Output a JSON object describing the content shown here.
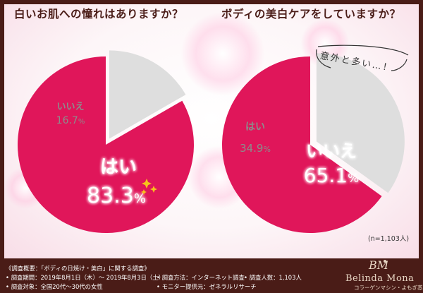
{
  "chart_data": [
    {
      "type": "pie",
      "title": "白いお肌への憧れはありますか？",
      "slices": [
        {
          "label": "はい",
          "number": "83.3",
          "value": 83.3,
          "color": "#e0165a"
        },
        {
          "label": "いいえ",
          "number": "16.7",
          "value": 16.7,
          "color": "#dedede"
        }
      ]
    },
    {
      "type": "pie",
      "title": "ボディの美白ケアをしていますか？",
      "slices": [
        {
          "label": "いいえ",
          "number": "65.1",
          "value": 65.1,
          "color": "#e0165a"
        },
        {
          "label": "はい",
          "number": "34.9",
          "value": 34.9,
          "color": "#dedede"
        }
      ],
      "note": "意外と多い…！",
      "sample": "(n=1,103人)"
    }
  ],
  "footer": {
    "heading": "《調査概要：「ボディの日焼け・美白」に関する調査》",
    "period": "• 調査期間：2019年8月1日（木）～ 2019年8月3日（土）",
    "target": "• 調査対象：全国20代～30代の女性",
    "method": "• 調査方法：インターネット調査",
    "provider": "• モニター提供元：ゼネラルリサーチ",
    "count": "• 調査人数：1,103人"
  },
  "brand": {
    "monogram": "BM",
    "name": "Belinda Mona",
    "tagline": "コラーゲンマシン・よもぎ蒸し"
  }
}
